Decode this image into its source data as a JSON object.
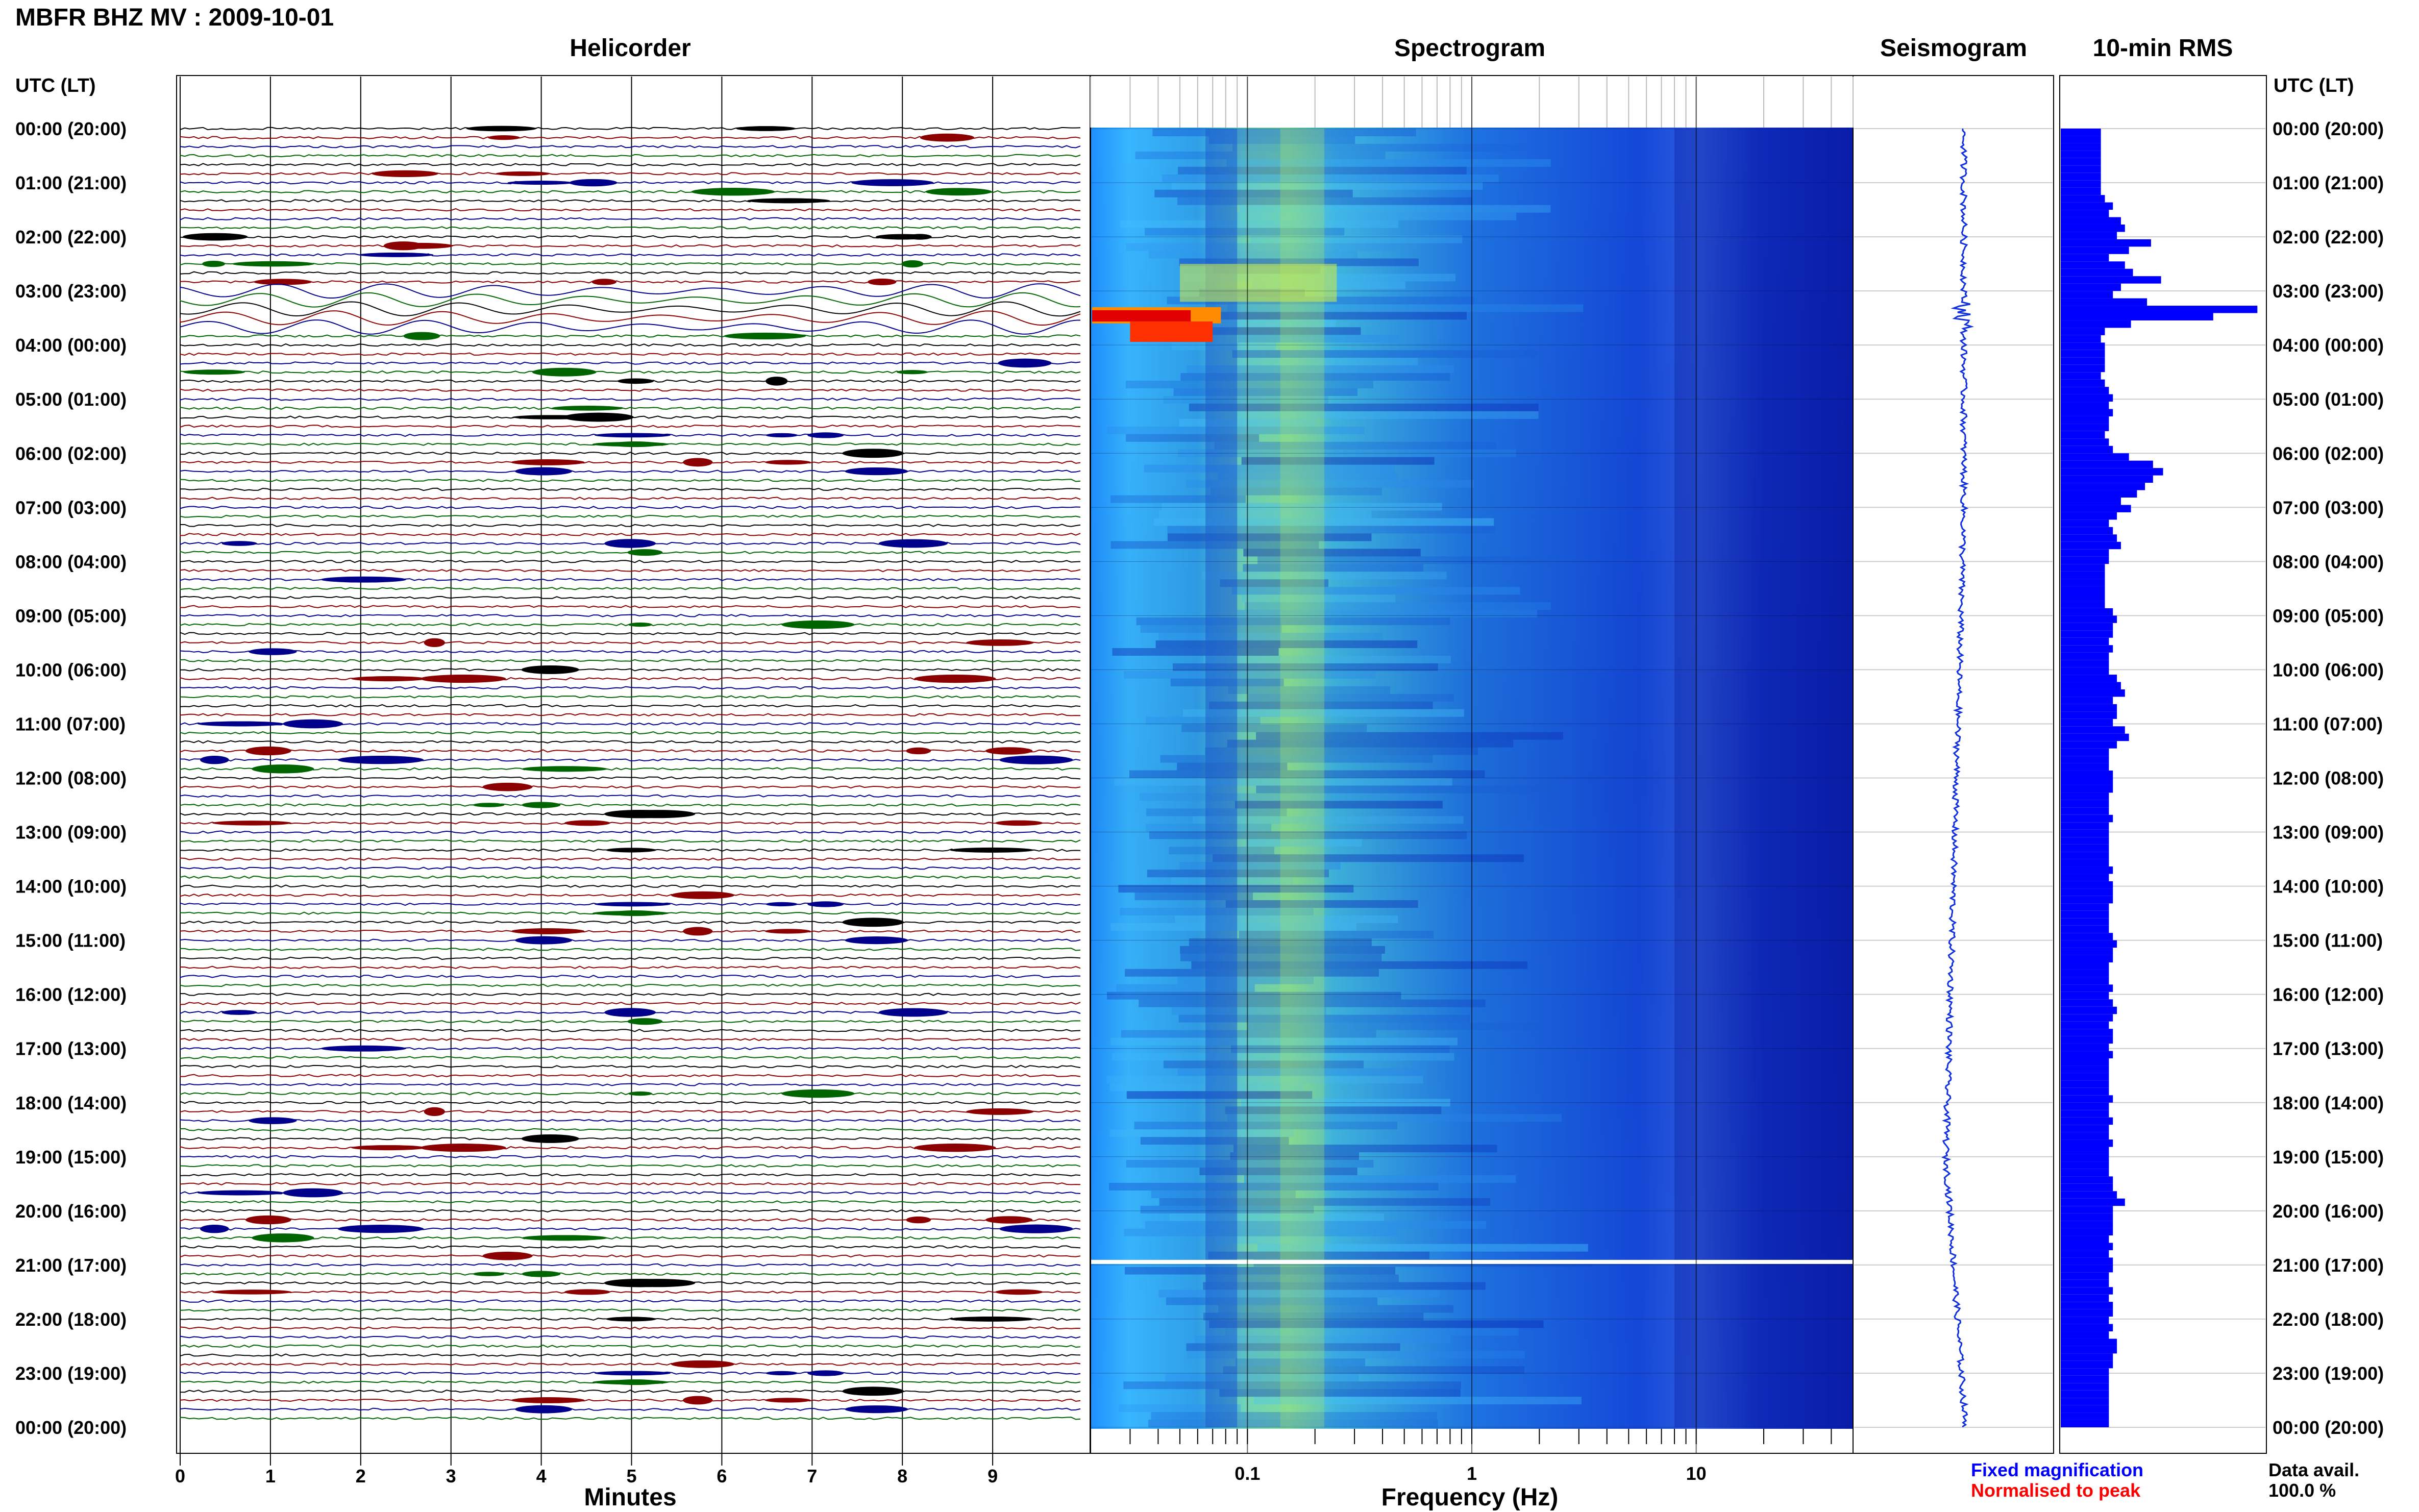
{
  "header": {
    "title": "MBFR BHZ MV : 2009-10-01"
  },
  "panels": {
    "helicorder_title": "Helicorder",
    "spectrogram_title": "Spectrogram",
    "seismogram_title": "Seismogram",
    "rms_title": "10-min RMS"
  },
  "axes": {
    "left_time_header": "UTC (LT)",
    "right_time_header": "UTC (LT)",
    "minutes_label": "Minutes",
    "frequency_label": "Frequency (Hz)"
  },
  "footer": {
    "fixed_magnification": "Fixed magnification",
    "normalised_to_peak": "Normalised to peak",
    "data_avail_label": "Data avail.",
    "data_avail_value": "100.0 %"
  },
  "colors": {
    "trace_black": "#000000",
    "trace_red": "#8b0000",
    "trace_blue": "#00008b",
    "trace_green": "#006400",
    "rms_bar": "#0000ff",
    "fixed_magnification": "#0000ff",
    "normalised_to_peak": "#ff0000"
  },
  "chart_data": {
    "type": "heatmap",
    "time_labels": [
      "00:00 (20:00)",
      "01:00 (21:00)",
      "02:00 (22:00)",
      "03:00 (23:00)",
      "04:00 (00:00)",
      "05:00 (01:00)",
      "06:00 (02:00)",
      "07:00 (03:00)",
      "08:00 (04:00)",
      "09:00 (05:00)",
      "10:00 (06:00)",
      "11:00 (07:00)",
      "12:00 (08:00)",
      "13:00 (09:00)",
      "14:00 (10:00)",
      "15:00 (11:00)",
      "16:00 (12:00)",
      "17:00 (13:00)",
      "18:00 (14:00)",
      "19:00 (15:00)",
      "20:00 (16:00)",
      "21:00 (17:00)",
      "22:00 (18:00)",
      "23:00 (19:00)",
      "00:00 (20:00)"
    ],
    "minutes_ticks": [
      "0",
      "1",
      "2",
      "3",
      "4",
      "5",
      "6",
      "7",
      "8",
      "9"
    ],
    "frequency_ticks": [
      "0.1",
      "1",
      "10"
    ],
    "frequency_range": [
      0.02,
      50
    ],
    "frequency_scale": "log",
    "helicorder_rows_per_hour": 6,
    "helicorder_minutes_range": [
      0,
      10
    ],
    "rms_10min": [
      2,
      2,
      2,
      2,
      2,
      2,
      2,
      2,
      2,
      2.2,
      2.6,
      2.4,
      3,
      3.2,
      2.8,
      4.5,
      3.4,
      2.4,
      3.2,
      3.6,
      5.0,
      3.0,
      2.6,
      4.3,
      9.8,
      7.6,
      3.5,
      2.2,
      2.0,
      2.2,
      2.2,
      2.2,
      2.2,
      2.0,
      2.2,
      2.4,
      2.6,
      2.4,
      2.6,
      2.4,
      2.4,
      2.2,
      2.4,
      2.6,
      3.4,
      4.6,
      5.1,
      4.6,
      4.2,
      3.8,
      3.0,
      3.5,
      2.8,
      2.4,
      2.6,
      2.8,
      3.0,
      2.4,
      2.4,
      2.2,
      2.2,
      2.2,
      2.2,
      2.2,
      2.2,
      2.6,
      2.8,
      2.6,
      2.6,
      2.4,
      2.6,
      2.4,
      2.4,
      2.4,
      2.8,
      3.0,
      3.2,
      2.6,
      2.8,
      2.8,
      2.6,
      3.2,
      3.4,
      2.8,
      2.4,
      2.4,
      2.4,
      2.6,
      2.6,
      2.6,
      2.4,
      2.4,
      2.4,
      2.6,
      2.4,
      2.4,
      2.4,
      2.4,
      2.4,
      2.4,
      2.6,
      2.4,
      2.6,
      2.6,
      2.6,
      2.4,
      2.4,
      2.4,
      2.4,
      2.6,
      2.8,
      2.6,
      2.6,
      2.4,
      2.4,
      2.4,
      2.6,
      2.4,
      2.6,
      2.8,
      2.6,
      2.4,
      2.6,
      2.6,
      2.4,
      2.6,
      2.4,
      2.4,
      2.4,
      2.4,
      2.4,
      2.6,
      2.4,
      2.4,
      2.6,
      2.4,
      2.4,
      2.6,
      2.4,
      2.4,
      2.4,
      2.4,
      2.6,
      2.6,
      2.8,
      3.2,
      2.6,
      2.6,
      2.6,
      2.6,
      2.4,
      2.6,
      2.4,
      2.6,
      2.6,
      2.4,
      2.4,
      2.6,
      2.4,
      2.6,
      2.6,
      2.4,
      2.6,
      2.4,
      2.8,
      2.8,
      2.6,
      2.6,
      2.4,
      2.4,
      2.4,
      2.4,
      2.4,
      2.4,
      2.4,
      2.4
    ],
    "spectral_event_hours": [
      3.3,
      3.6
    ],
    "data_gap_hour": 21.0
  }
}
